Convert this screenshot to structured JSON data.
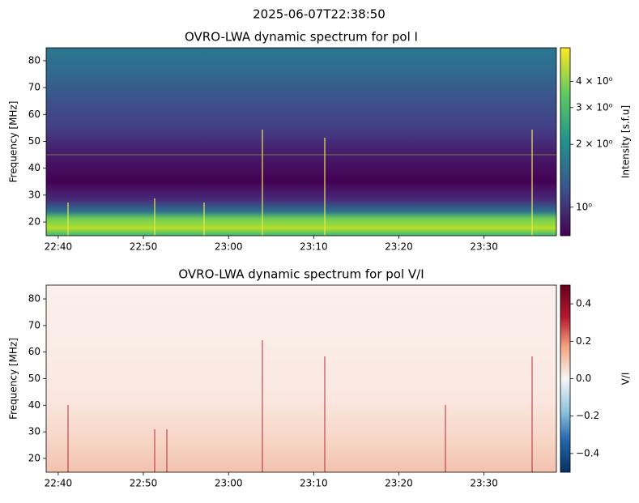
{
  "figure_title": "2025-06-07T22:38:50",
  "chart_data": [
    {
      "type": "heatmap",
      "title": "OVRO-LWA dynamic spectrum for pol I",
      "ylabel": "Frequency [MHz]",
      "xlim": [
        "22:38:35",
        "23:38:30"
      ],
      "xticks": [
        "22:40",
        "22:50",
        "23:00",
        "23:10",
        "23:20",
        "23:30"
      ],
      "ylim": [
        14.9,
        84.8
      ],
      "yticks": [
        20,
        30,
        40,
        50,
        60,
        70,
        80
      ],
      "colorbar": {
        "label": "Intensity [s.f.u]",
        "scale": "log",
        "lim": [
          0.73,
          5.8
        ],
        "ticks": [
          {
            "value": 1,
            "label": "10⁰"
          },
          {
            "value": 2,
            "label": "2 × 10⁰"
          },
          {
            "value": 3,
            "label": "3 × 10⁰"
          },
          {
            "value": 4,
            "label": "4 × 10⁰"
          }
        ]
      }
    },
    {
      "type": "heatmap",
      "title": "OVRO-LWA dynamic spectrum for pol V/I",
      "ylabel": "Frequency [MHz]",
      "xlim": [
        "22:38:35",
        "23:38:30"
      ],
      "xticks": [
        "22:40",
        "22:50",
        "23:00",
        "23:10",
        "23:20",
        "23:30"
      ],
      "ylim": [
        14.8,
        85.2
      ],
      "yticks": [
        20,
        30,
        40,
        50,
        60,
        70,
        80
      ],
      "colorbar": {
        "label": "V/I",
        "scale": "linear",
        "lim": [
          -0.5,
          0.5
        ],
        "ticks": [
          {
            "value": -0.4,
            "label": "−0.4"
          },
          {
            "value": -0.2,
            "label": "−0.2"
          },
          {
            "value": 0,
            "label": "0.0"
          },
          0.2,
          0.4
        ]
      }
    }
  ]
}
